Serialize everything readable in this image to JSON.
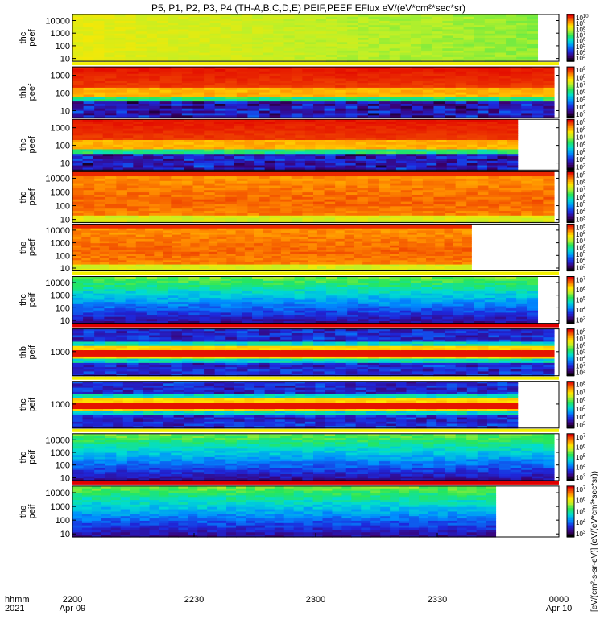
{
  "chart_data": {
    "type": "heatmap",
    "title": "P5, P1, P2, P3, P4 (TH-A,B,C,D,E) PEIF,PEEF EFlux eV/(eV*cm²*sec*sr)",
    "time_axis": {
      "corner_labels": [
        "hhmm",
        "2021"
      ],
      "ticks": [
        {
          "label": "2200",
          "sub": "Apr 09"
        },
        {
          "label": "2230",
          "sub": ""
        },
        {
          "label": "2300",
          "sub": ""
        },
        {
          "label": "2330",
          "sub": ""
        },
        {
          "label": "0000",
          "sub": "Apr 10"
        }
      ]
    },
    "colorbar_label": "[eV/(cm²-s-sr-eV)] (eV/(eV*cm²*sec*sr))",
    "y_scale": "log",
    "panels": [
      {
        "ylabel": [
          "thc",
          "peef"
        ],
        "yticks": [
          "10000",
          "1000",
          "100",
          "10"
        ],
        "yrange": [
          6,
          30000
        ],
        "cbar_ticks": [
          "10^10",
          "10^9",
          "10^8",
          "10^7",
          "10^6",
          "10^5",
          "10^4",
          "10^3"
        ],
        "data_end": 0.956,
        "palette": "green-yellow",
        "flag_bar": "#f3f000"
      },
      {
        "ylabel": [
          "thb",
          "peef"
        ],
        "yticks": [
          "1000",
          "100",
          "10"
        ],
        "yrange": [
          4,
          3000
        ],
        "cbar_ticks": [
          "10^9",
          "10^8",
          "10^7",
          "10^6",
          "10^5",
          "10^4",
          "10^3"
        ],
        "data_end": 0.99,
        "palette": "red-low",
        "flag_bar": ""
      },
      {
        "ylabel": [
          "thc",
          "peef"
        ],
        "yticks": [
          "1000",
          "100",
          "10"
        ],
        "yrange": [
          4,
          3000
        ],
        "cbar_ticks": [
          "10^9",
          "10^8",
          "10^7",
          "10^6",
          "10^5",
          "10^4",
          "10^3"
        ],
        "data_end": 0.915,
        "palette": "red-low",
        "flag_bar": ""
      },
      {
        "ylabel": [
          "thd",
          "peef"
        ],
        "yticks": [
          "10000",
          "1000",
          "100",
          "10"
        ],
        "yrange": [
          6,
          30000
        ],
        "cbar_ticks": [
          "10^9",
          "10^8",
          "10^7",
          "10^6",
          "10^5",
          "10^4",
          "10^3"
        ],
        "data_end": 0.99,
        "palette": "red-orange",
        "flag_bar": ""
      },
      {
        "ylabel": [
          "the",
          "peef"
        ],
        "yticks": [
          "10000",
          "1000",
          "100",
          "10"
        ],
        "yrange": [
          6,
          30000
        ],
        "cbar_ticks": [
          "10^9",
          "10^8",
          "10^7",
          "10^6",
          "10^5",
          "10^4",
          "10^3"
        ],
        "data_end": 0.82,
        "palette": "red-orange",
        "flag_bar": "#f3f000"
      },
      {
        "ylabel": [
          "thc",
          "peif"
        ],
        "yticks": [
          "10000",
          "1000",
          "100",
          "10"
        ],
        "yrange": [
          6,
          30000
        ],
        "cbar_ticks": [
          "10^7",
          "10^6",
          "10^5",
          "10^4",
          "10^3"
        ],
        "data_end": 0.956,
        "palette": "green-blue",
        "flag_bar": "#e00000"
      },
      {
        "ylabel": [
          "thb",
          "peif"
        ],
        "yticks": [
          "1000"
        ],
        "yrange": [
          150,
          6000
        ],
        "cbar_ticks": [
          "10^8",
          "10^7",
          "10^6",
          "10^5",
          "10^4",
          "10^3",
          "10^2"
        ],
        "data_end": 0.99,
        "palette": "blue-red-band",
        "flag_bar": "#f3f000"
      },
      {
        "ylabel": [
          "thc",
          "peif"
        ],
        "yticks": [
          "1000"
        ],
        "yrange": [
          150,
          6000
        ],
        "cbar_ticks": [
          "10^8",
          "10^7",
          "10^6",
          "10^5",
          "10^4",
          "10^3"
        ],
        "data_end": 0.915,
        "palette": "blue-red-band",
        "flag_bar": "#f3f000"
      },
      {
        "ylabel": [
          "thd",
          "peif"
        ],
        "yticks": [
          "10000",
          "1000",
          "100",
          "10"
        ],
        "yrange": [
          6,
          30000
        ],
        "cbar_ticks": [
          "10^7",
          "10^6",
          "10^5",
          "10^4",
          "10^3"
        ],
        "data_end": 0.99,
        "palette": "green-blue",
        "flag_bar": "#e00000"
      },
      {
        "ylabel": [
          "the",
          "peif"
        ],
        "yticks": [
          "10000",
          "1000",
          "100",
          "10"
        ],
        "yrange": [
          6,
          30000
        ],
        "cbar_ticks": [
          "10^7",
          "10^6",
          "10^5",
          "10^4",
          "10^3"
        ],
        "data_end": 0.87,
        "palette": "green-blue",
        "flag_bar": ""
      }
    ]
  }
}
